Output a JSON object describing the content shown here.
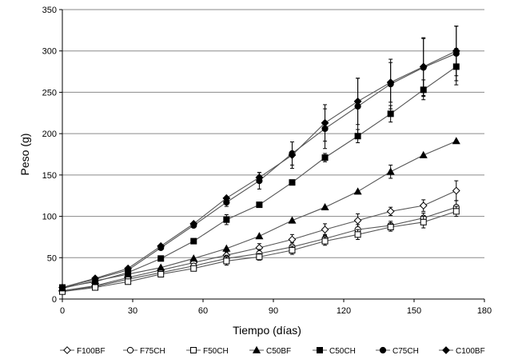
{
  "chart_data": {
    "type": "line",
    "title": "",
    "xlabel": "Tiempo (días)",
    "ylabel": "Peso (g)",
    "xlim": [
      0,
      180
    ],
    "ylim": [
      0,
      350
    ],
    "xticks": [
      0,
      30,
      60,
      90,
      120,
      150,
      180
    ],
    "yticks": [
      0,
      50,
      100,
      150,
      200,
      250,
      300,
      350
    ],
    "grid": "horizontal",
    "legend_position": "bottom",
    "series": [
      {
        "name": "F100BF",
        "marker": "diamond-open",
        "x": [
          0,
          14,
          28,
          42,
          56,
          70,
          84,
          98,
          112,
          126,
          140,
          154,
          168
        ],
        "y": [
          10,
          16,
          26,
          35,
          44,
          53,
          62,
          72,
          84,
          95,
          106,
          113,
          131
        ],
        "err": [
          0,
          0,
          0,
          0,
          0,
          4,
          5,
          6,
          7,
          8,
          5,
          7,
          12
        ]
      },
      {
        "name": "F75CH",
        "marker": "circle-open",
        "x": [
          0,
          14,
          28,
          42,
          56,
          70,
          84,
          98,
          112,
          126,
          140,
          154,
          168
        ],
        "y": [
          10,
          15,
          24,
          32,
          40,
          49,
          55,
          63,
          73,
          84,
          89,
          98,
          111
        ],
        "err": [
          0,
          0,
          0,
          0,
          0,
          4,
          5,
          5,
          5,
          6,
          5,
          6,
          8
        ]
      },
      {
        "name": "F50CH",
        "marker": "square-open",
        "x": [
          0,
          14,
          28,
          42,
          56,
          70,
          84,
          98,
          112,
          126,
          140,
          154,
          168
        ],
        "y": [
          9,
          14,
          21,
          30,
          37,
          46,
          51,
          59,
          70,
          78,
          87,
          93,
          106
        ],
        "err": [
          0,
          0,
          0,
          0,
          0,
          5,
          4,
          5,
          5,
          6,
          5,
          7,
          6
        ]
      },
      {
        "name": "C50BF",
        "marker": "triangle-filled",
        "x": [
          0,
          14,
          28,
          42,
          56,
          70,
          84,
          98,
          112,
          126,
          140,
          154,
          168
        ],
        "y": [
          13,
          22,
          30,
          38,
          49,
          61,
          76,
          95,
          111,
          130,
          154,
          174,
          191
        ],
        "err": [
          0,
          0,
          0,
          0,
          0,
          0,
          0,
          0,
          0,
          0,
          8,
          0,
          0
        ]
      },
      {
        "name": "C50CH",
        "marker": "square-filled",
        "x": [
          0,
          14,
          28,
          42,
          56,
          70,
          84,
          98,
          112,
          126,
          140,
          154,
          168
        ],
        "y": [
          14,
          21,
          32,
          49,
          70,
          96,
          114,
          141,
          171,
          197,
          224,
          253,
          281
        ],
        "err": [
          0,
          0,
          0,
          0,
          0,
          6,
          0,
          0,
          5,
          8,
          10,
          12,
          22
        ]
      },
      {
        "name": "C75CH",
        "marker": "circle-filled",
        "x": [
          0,
          14,
          28,
          42,
          56,
          70,
          84,
          98,
          112,
          126,
          140,
          154,
          168
        ],
        "y": [
          14,
          24,
          35,
          62,
          89,
          117,
          143,
          176,
          206,
          233,
          260,
          280,
          297
        ],
        "err": [
          0,
          0,
          0,
          0,
          0,
          5,
          10,
          14,
          24,
          34,
          30,
          35,
          33
        ]
      },
      {
        "name": "C100BF",
        "marker": "diamond-filled",
        "x": [
          0,
          14,
          28,
          42,
          56,
          70,
          84,
          98,
          112,
          126,
          140,
          154,
          168
        ],
        "y": [
          14,
          25,
          37,
          64,
          91,
          122,
          147,
          174,
          213,
          239,
          262,
          281,
          300
        ],
        "err": [
          0,
          0,
          0,
          0,
          0,
          0,
          6,
          16,
          22,
          28,
          24,
          35,
          30
        ]
      }
    ]
  }
}
